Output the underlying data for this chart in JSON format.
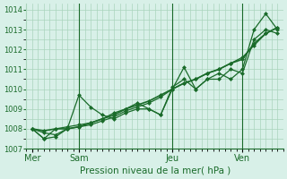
{
  "title": "",
  "xlabel": "Pression niveau de la mer( hPa )",
  "ylabel": "",
  "bg_color": "#d8f0e8",
  "grid_color": "#aad4bc",
  "line_color": "#1a6b2a",
  "ylim": [
    1007.0,
    1014.3
  ],
  "yticks": [
    1007,
    1008,
    1009,
    1010,
    1011,
    1012,
    1013,
    1014
  ],
  "day_labels": [
    "Mer",
    "Sam",
    "Jeu",
    "Ven"
  ],
  "day_positions": [
    0,
    4,
    12,
    18
  ],
  "line1_x": [
    0,
    1,
    2,
    3,
    4,
    5,
    6,
    7,
    8,
    9,
    10,
    11,
    12,
    13,
    14,
    15,
    16,
    17,
    18,
    19,
    20,
    21
  ],
  "line1_y": [
    1008.0,
    1007.8,
    1007.7,
    1008.0,
    1008.1,
    1008.2,
    1008.4,
    1008.6,
    1008.9,
    1009.1,
    1009.3,
    1009.6,
    1010.0,
    1010.3,
    1010.5,
    1010.8,
    1011.0,
    1011.3,
    1011.6,
    1012.2,
    1012.8,
    1013.1
  ],
  "line2_x": [
    0,
    1,
    2,
    3,
    4,
    5,
    6,
    7,
    8,
    9,
    10,
    11,
    12,
    13,
    14,
    15,
    16,
    17,
    18,
    19,
    20,
    21
  ],
  "line2_y": [
    1008.0,
    1007.5,
    1007.6,
    1008.0,
    1009.7,
    1009.1,
    1008.7,
    1008.5,
    1008.8,
    1009.0,
    1009.0,
    1008.7,
    1010.0,
    1011.1,
    1010.0,
    1010.5,
    1010.8,
    1010.5,
    1011.0,
    1013.0,
    1013.8,
    1013.0
  ],
  "line3_x": [
    0,
    1,
    2,
    3,
    4,
    5,
    6,
    7,
    8,
    9,
    10,
    11,
    12,
    13,
    14,
    15,
    16,
    17,
    18,
    19,
    20,
    21
  ],
  "line3_y": [
    1008.0,
    1007.5,
    1008.0,
    1008.1,
    1008.2,
    1008.3,
    1008.5,
    1008.8,
    1009.0,
    1009.3,
    1009.0,
    1008.7,
    1010.1,
    1010.5,
    1010.0,
    1010.5,
    1010.5,
    1011.0,
    1010.8,
    1012.5,
    1013.0,
    1012.8
  ],
  "line4_x": [
    0,
    1,
    2,
    3,
    4,
    5,
    6,
    7,
    8,
    9,
    10,
    11,
    12,
    13,
    14,
    15,
    16,
    17,
    18,
    19,
    20,
    21
  ],
  "line4_y": [
    1008.0,
    1007.9,
    1008.0,
    1008.0,
    1008.1,
    1008.3,
    1008.5,
    1008.7,
    1009.0,
    1009.2,
    1009.4,
    1009.7,
    1010.0,
    1010.3,
    1010.5,
    1010.8,
    1011.0,
    1011.3,
    1011.5,
    1012.3,
    1012.8,
    1013.1
  ],
  "vline_positions": [
    4,
    12,
    18
  ],
  "marker_size": 2.5
}
